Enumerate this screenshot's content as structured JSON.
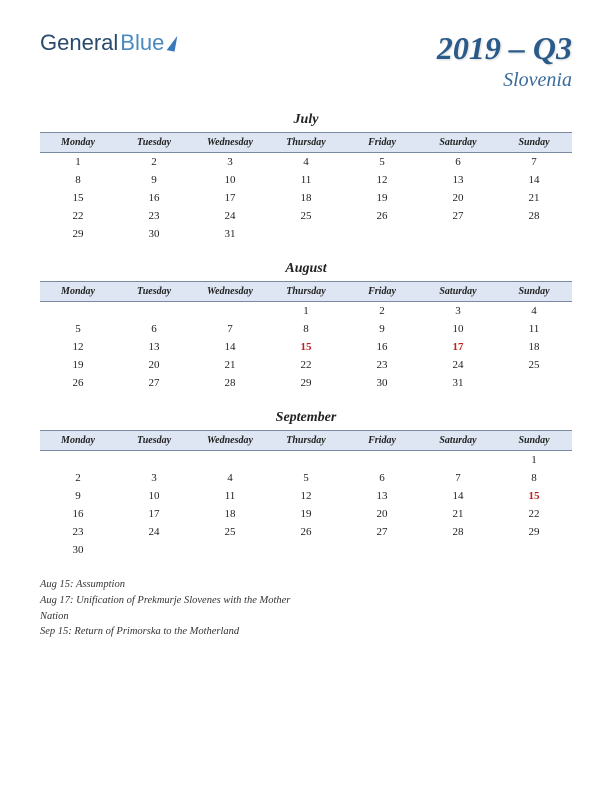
{
  "logo": {
    "part1": "General",
    "part2": "Blue"
  },
  "title": {
    "main": "2019 – Q3",
    "sub": "Slovenia"
  },
  "colors": {
    "header_bg": "#dde6f2",
    "header_border": "#7a8aa0",
    "title_color": "#2a5a8a",
    "holiday_color": "#c02020"
  },
  "daynames": [
    "Monday",
    "Tuesday",
    "Wednesday",
    "Thursday",
    "Friday",
    "Saturday",
    "Sunday"
  ],
  "months": [
    {
      "name": "July",
      "weeks": [
        [
          {
            "d": 1
          },
          {
            "d": 2
          },
          {
            "d": 3
          },
          {
            "d": 4
          },
          {
            "d": 5
          },
          {
            "d": 6
          },
          {
            "d": 7
          }
        ],
        [
          {
            "d": 8
          },
          {
            "d": 9
          },
          {
            "d": 10
          },
          {
            "d": 11
          },
          {
            "d": 12
          },
          {
            "d": 13
          },
          {
            "d": 14
          }
        ],
        [
          {
            "d": 15
          },
          {
            "d": 16
          },
          {
            "d": 17
          },
          {
            "d": 18
          },
          {
            "d": 19
          },
          {
            "d": 20
          },
          {
            "d": 21
          }
        ],
        [
          {
            "d": 22
          },
          {
            "d": 23
          },
          {
            "d": 24
          },
          {
            "d": 25
          },
          {
            "d": 26
          },
          {
            "d": 27
          },
          {
            "d": 28
          }
        ],
        [
          {
            "d": 29
          },
          {
            "d": 30
          },
          {
            "d": 31
          },
          {
            "d": ""
          },
          {
            "d": ""
          },
          {
            "d": ""
          },
          {
            "d": ""
          }
        ]
      ]
    },
    {
      "name": "August",
      "weeks": [
        [
          {
            "d": ""
          },
          {
            "d": ""
          },
          {
            "d": ""
          },
          {
            "d": 1
          },
          {
            "d": 2
          },
          {
            "d": 3
          },
          {
            "d": 4
          }
        ],
        [
          {
            "d": 5
          },
          {
            "d": 6
          },
          {
            "d": 7
          },
          {
            "d": 8
          },
          {
            "d": 9
          },
          {
            "d": 10
          },
          {
            "d": 11
          }
        ],
        [
          {
            "d": 12
          },
          {
            "d": 13
          },
          {
            "d": 14
          },
          {
            "d": 15,
            "h": true
          },
          {
            "d": 16
          },
          {
            "d": 17,
            "h": true
          },
          {
            "d": 18
          }
        ],
        [
          {
            "d": 19
          },
          {
            "d": 20
          },
          {
            "d": 21
          },
          {
            "d": 22
          },
          {
            "d": 23
          },
          {
            "d": 24
          },
          {
            "d": 25
          }
        ],
        [
          {
            "d": 26
          },
          {
            "d": 27
          },
          {
            "d": 28
          },
          {
            "d": 29
          },
          {
            "d": 30
          },
          {
            "d": 31
          },
          {
            "d": ""
          }
        ]
      ]
    },
    {
      "name": "September",
      "weeks": [
        [
          {
            "d": ""
          },
          {
            "d": ""
          },
          {
            "d": ""
          },
          {
            "d": ""
          },
          {
            "d": ""
          },
          {
            "d": ""
          },
          {
            "d": 1
          }
        ],
        [
          {
            "d": 2
          },
          {
            "d": 3
          },
          {
            "d": 4
          },
          {
            "d": 5
          },
          {
            "d": 6
          },
          {
            "d": 7
          },
          {
            "d": 8
          }
        ],
        [
          {
            "d": 9
          },
          {
            "d": 10
          },
          {
            "d": 11
          },
          {
            "d": 12
          },
          {
            "d": 13
          },
          {
            "d": 14
          },
          {
            "d": 15,
            "h": true
          }
        ],
        [
          {
            "d": 16
          },
          {
            "d": 17
          },
          {
            "d": 18
          },
          {
            "d": 19
          },
          {
            "d": 20
          },
          {
            "d": 21
          },
          {
            "d": 22
          }
        ],
        [
          {
            "d": 23
          },
          {
            "d": 24
          },
          {
            "d": 25
          },
          {
            "d": 26
          },
          {
            "d": 27
          },
          {
            "d": 28
          },
          {
            "d": 29
          }
        ],
        [
          {
            "d": 30
          },
          {
            "d": ""
          },
          {
            "d": ""
          },
          {
            "d": ""
          },
          {
            "d": ""
          },
          {
            "d": ""
          },
          {
            "d": ""
          }
        ]
      ]
    }
  ],
  "notes": [
    "Aug 15: Assumption",
    "Aug 17: Unification of Prekmurje Slovenes with the Mother Nation",
    "Sep 15: Return of Primorska to the Motherland"
  ]
}
